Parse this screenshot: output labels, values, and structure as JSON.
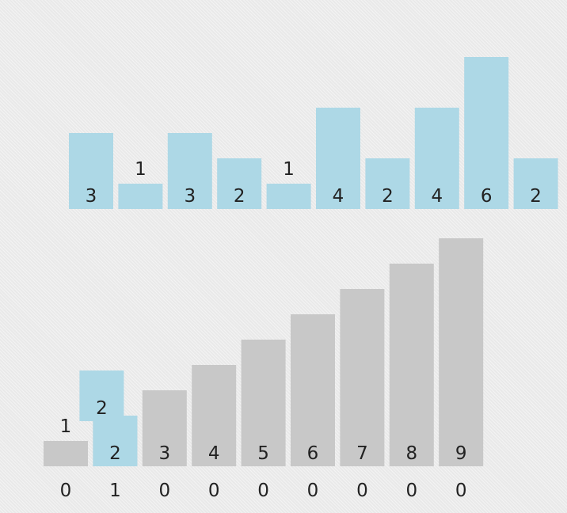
{
  "colors": {
    "input_bar": "#add8e6",
    "output_bar": "#c8c8c8",
    "text": "#222222"
  },
  "chart_data": [
    {
      "type": "bar",
      "values": [
        3,
        1,
        3,
        2,
        1,
        4,
        2,
        4,
        6,
        2
      ],
      "bar_color": "#add8e6",
      "labels_inside_when_room": true
    },
    {
      "type": "bar",
      "background_values": [
        1,
        2,
        3,
        4,
        5,
        6,
        7,
        8,
        9
      ],
      "highlight": [
        {
          "index": 1,
          "value": 2,
          "stack_level": 0
        },
        {
          "index": 1,
          "value": 2,
          "stack_level": 1
        }
      ],
      "bottom_labels": [
        0,
        1,
        0,
        0,
        0,
        0,
        0,
        0,
        0
      ],
      "bar_color": "#c8c8c8",
      "highlight_color": "#add8e6"
    }
  ]
}
